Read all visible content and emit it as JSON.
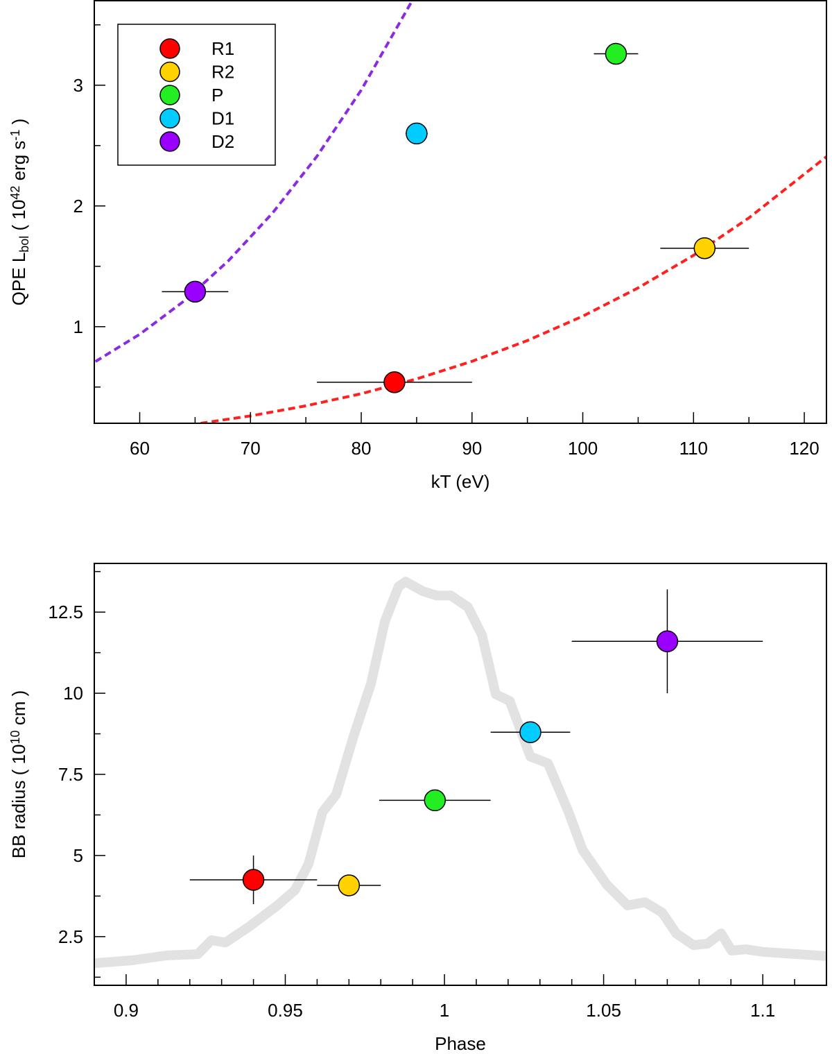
{
  "chart_data": [
    {
      "type": "scatter",
      "xlabel": "kT (eV)",
      "ylabel": [
        {
          "text": "QPE L"
        },
        {
          "text": "bol",
          "shift": "sub"
        },
        {
          "text": " ( 10"
        },
        {
          "text": "42",
          "shift": "sup"
        },
        {
          "text": " erg s"
        },
        {
          "text": "-1",
          "shift": "sup"
        },
        {
          "text": " )"
        }
      ],
      "xlim": [
        55.9,
        122
      ],
      "xticks": [
        60,
        70,
        80,
        90,
        100,
        110,
        120
      ],
      "xminor": [
        65,
        75,
        85,
        95,
        105,
        115
      ],
      "ylim": [
        0.2,
        3.7
      ],
      "yticks": [
        1,
        2,
        3
      ],
      "yminor": [
        0.5,
        1.5,
        2.5,
        3.5
      ],
      "legend": "upper left",
      "series": [
        {
          "name": "R1",
          "color": "#ff0000",
          "x": [
            83
          ],
          "values": [
            0.54
          ],
          "xerr": [
            7
          ],
          "yerr": [
            null
          ]
        },
        {
          "name": "R2",
          "color": "#ffd200",
          "x": [
            111
          ],
          "values": [
            1.65
          ],
          "xerr": [
            4
          ],
          "yerr": [
            null
          ]
        },
        {
          "name": "P",
          "color": "#22ee22",
          "x": [
            103
          ],
          "values": [
            3.26
          ],
          "xerr": [
            2
          ],
          "yerr": [
            null
          ]
        },
        {
          "name": "D1",
          "color": "#00ccff",
          "x": [
            85
          ],
          "values": [
            2.6
          ],
          "xerr": [
            1
          ],
          "yerr": [
            0.06
          ]
        },
        {
          "name": "D2",
          "color": "#9900ff",
          "x": [
            65
          ],
          "values": [
            1.29
          ],
          "xerr": [
            3
          ],
          "yerr": [
            null
          ]
        }
      ],
      "lines": [
        {
          "color": "#ff2020",
          "dashed": true,
          "width": 4,
          "x": [
            65.5,
            70,
            75,
            80,
            85,
            90,
            95,
            100,
            105,
            110,
            115,
            122
          ],
          "values": [
            0.2,
            0.261,
            0.344,
            0.445,
            0.567,
            0.713,
            0.885,
            1.087,
            1.321,
            1.591,
            1.901,
            2.408
          ]
        },
        {
          "color": "#8a2be2",
          "dashed": true,
          "width": 4,
          "x": [
            56,
            60,
            64,
            68,
            72,
            76,
            80,
            84.6
          ],
          "values": [
            0.711,
            0.937,
            1.212,
            1.545,
            1.942,
            2.411,
            2.96,
            3.7
          ]
        }
      ]
    },
    {
      "type": "scatter",
      "xlabel": "Phase",
      "ylabel": [
        {
          "text": "BB radius ( 10"
        },
        {
          "text": "10",
          "shift": "sup"
        },
        {
          "text": " cm )"
        }
      ],
      "xlim": [
        0.89,
        1.12
      ],
      "xticks": [
        0.9,
        0.95,
        1,
        1.05,
        1.1
      ],
      "xminor": [
        0.91,
        0.92,
        0.93,
        0.94,
        0.96,
        0.97,
        0.98,
        0.99,
        1.01,
        1.02,
        1.03,
        1.04,
        1.06,
        1.07,
        1.08,
        1.09,
        1.11
      ],
      "ylim": [
        1,
        14
      ],
      "yticks": [
        2.5,
        5,
        {
          "value": 7.5,
          "label": "7.5"
        },
        10,
        12.5
      ],
      "yminor": [
        1.25,
        3.75,
        6.25,
        8.75,
        11.25,
        13.75
      ],
      "series": [
        {
          "color": "#ff0000",
          "x": [
            0.94
          ],
          "values": [
            4.25
          ],
          "xerr": [
            0.02
          ],
          "yerr": [
            0.75
          ]
        },
        {
          "color": "#ffd200",
          "x": [
            0.97
          ],
          "values": [
            4.08
          ],
          "xerr": [
            0.01
          ],
          "yerr": [
            null
          ]
        },
        {
          "color": "#22ee22",
          "x": [
            0.997
          ],
          "values": [
            6.7
          ],
          "xerr": [
            0.0175
          ],
          "yerr": [
            null
          ]
        },
        {
          "color": "#00ccff",
          "x": [
            1.027
          ],
          "values": [
            8.8
          ],
          "xerr": [
            0.0125
          ],
          "yerr": [
            0.3
          ]
        },
        {
          "color": "#9900ff",
          "x": [
            1.07
          ],
          "values": [
            11.6
          ],
          "xerr": [
            0.03
          ],
          "yerr": [
            1.6
          ]
        }
      ],
      "lines": [
        {
          "color": "#e2e2e2",
          "dashed": false,
          "width": 14,
          "x": [
            0.89,
            0.9018,
            0.9127,
            0.9225,
            0.9268,
            0.9312,
            0.9388,
            0.9475,
            0.953,
            0.9573,
            0.9617,
            0.966,
            0.9715,
            0.9769,
            0.9813,
            0.9856,
            0.9878,
            0.9933,
            0.9976,
            1.002,
            1.0074,
            1.0118,
            1.0161,
            1.0205,
            1.027,
            1.0325,
            1.039,
            1.0434,
            1.051,
            1.0575,
            1.063,
            1.0684,
            1.0728,
            1.0782,
            1.0826,
            1.0869,
            1.0902,
            1.0946,
            1.1,
            1.12
          ],
          "values": [
            1.68,
            1.77,
            1.92,
            1.96,
            2.39,
            2.32,
            2.82,
            3.46,
            3.93,
            4.74,
            6.34,
            6.88,
            8.69,
            10.29,
            12.22,
            13.29,
            13.44,
            13.14,
            13.01,
            13.01,
            12.65,
            11.79,
            9.97,
            9.76,
            8.05,
            7.84,
            6.34,
            5.17,
            4.1,
            3.46,
            3.56,
            3.24,
            2.6,
            2.24,
            2.28,
            2.6,
            2.07,
            2.11,
            2.03,
            1.9
          ]
        }
      ]
    }
  ]
}
